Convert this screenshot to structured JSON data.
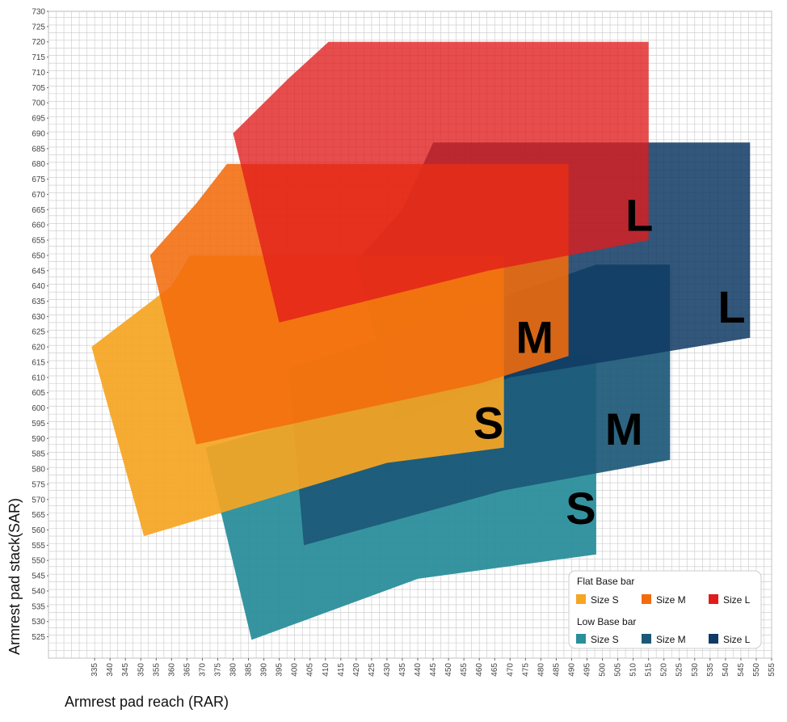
{
  "chart_data": {
    "type": "area",
    "xlabel": "Armrest pad reach (RAR)",
    "ylabel": "Armrest pad stack(SAR)",
    "xlim": [
      320,
      555
    ],
    "ylim": [
      518,
      730
    ],
    "x_ticks": [
      335,
      340,
      345,
      350,
      355,
      360,
      365,
      370,
      375,
      380,
      385,
      390,
      395,
      400,
      405,
      410,
      415,
      420,
      425,
      430,
      435,
      440,
      445,
      450,
      455,
      460,
      465,
      470,
      475,
      480,
      485,
      490,
      495,
      500,
      505,
      510,
      515,
      520,
      525,
      530,
      535,
      540,
      545,
      550,
      555
    ],
    "y_ticks": [
      525,
      530,
      535,
      540,
      545,
      550,
      555,
      560,
      565,
      570,
      575,
      580,
      585,
      590,
      595,
      600,
      605,
      610,
      615,
      620,
      625,
      630,
      635,
      640,
      645,
      650,
      655,
      660,
      665,
      670,
      675,
      680,
      685,
      690,
      695,
      700,
      705,
      710,
      715,
      720,
      725,
      730
    ],
    "grid": true,
    "legend": {
      "placement": "bottom-right",
      "groups": [
        {
          "title": "Flat Base bar",
          "items": [
            {
              "label": "Size S",
              "color": "#F5A623"
            },
            {
              "label": "Size M",
              "color": "#F26C0D"
            },
            {
              "label": "Size L",
              "color": "#E21B1B"
            }
          ]
        },
        {
          "title": "Low Base bar",
          "items": [
            {
              "label": "Size S",
              "color": "#2A8E9B"
            },
            {
              "label": "Size M",
              "color": "#1C5877"
            },
            {
              "label": "Size L",
              "color": "#0F3A63"
            }
          ]
        }
      ]
    },
    "series": [
      {
        "name": "Size S",
        "group": "Low Base bar",
        "color": "#2A8E9B",
        "opacity": 0.95,
        "label": "S",
        "label_at": [
          493,
          562
        ],
        "polygon": [
          [
            371,
            587
          ],
          [
            427,
            603
          ],
          [
            468,
            617
          ],
          [
            498,
            617
          ],
          [
            498,
            552
          ],
          [
            440,
            544
          ],
          [
            386,
            524
          ]
        ]
      },
      {
        "name": "Size M",
        "group": "Low Base bar",
        "color": "#1C5877",
        "opacity": 0.92,
        "label": "M",
        "label_at": [
          507,
          588
        ],
        "polygon": [
          [
            398,
            613
          ],
          [
            455,
            632
          ],
          [
            498,
            647
          ],
          [
            522,
            647
          ],
          [
            522,
            583
          ],
          [
            468,
            573
          ],
          [
            403,
            555
          ]
        ]
      },
      {
        "name": "Size L",
        "group": "Low Base bar",
        "color": "#0F3A63",
        "opacity": 0.85,
        "label": "L",
        "label_at": [
          542,
          628
        ],
        "polygon": [
          [
            420,
            648
          ],
          [
            435,
            665
          ],
          [
            445,
            687
          ],
          [
            548,
            687
          ],
          [
            548,
            623
          ],
          [
            470,
            610
          ],
          [
            433,
            596
          ]
        ]
      },
      {
        "name": "Size S",
        "group": "Flat Base bar",
        "color": "#F5A623",
        "opacity": 0.93,
        "label": "S",
        "label_at": [
          463,
          590
        ],
        "polygon": [
          [
            334,
            620
          ],
          [
            360,
            640
          ],
          [
            366,
            650
          ],
          [
            468,
            650
          ],
          [
            468,
            587
          ],
          [
            430,
            582
          ],
          [
            351,
            558
          ]
        ]
      },
      {
        "name": "Size M",
        "group": "Flat Base bar",
        "color": "#F26C0D",
        "opacity": 0.88,
        "label": "M",
        "label_at": [
          478,
          618
        ],
        "polygon": [
          [
            353,
            650
          ],
          [
            368,
            667
          ],
          [
            378,
            680
          ],
          [
            489,
            680
          ],
          [
            489,
            617
          ],
          [
            460,
            608
          ],
          [
            368,
            588
          ]
        ]
      },
      {
        "name": "Size L",
        "group": "Flat Base bar",
        "color": "#E21B1B",
        "opacity": 0.78,
        "label": "L",
        "label_at": [
          512,
          658
        ],
        "polygon": [
          [
            380,
            690
          ],
          [
            398,
            708
          ],
          [
            411,
            720
          ],
          [
            515,
            720
          ],
          [
            515,
            655
          ],
          [
            463,
            645
          ],
          [
            395,
            628
          ]
        ]
      }
    ]
  }
}
